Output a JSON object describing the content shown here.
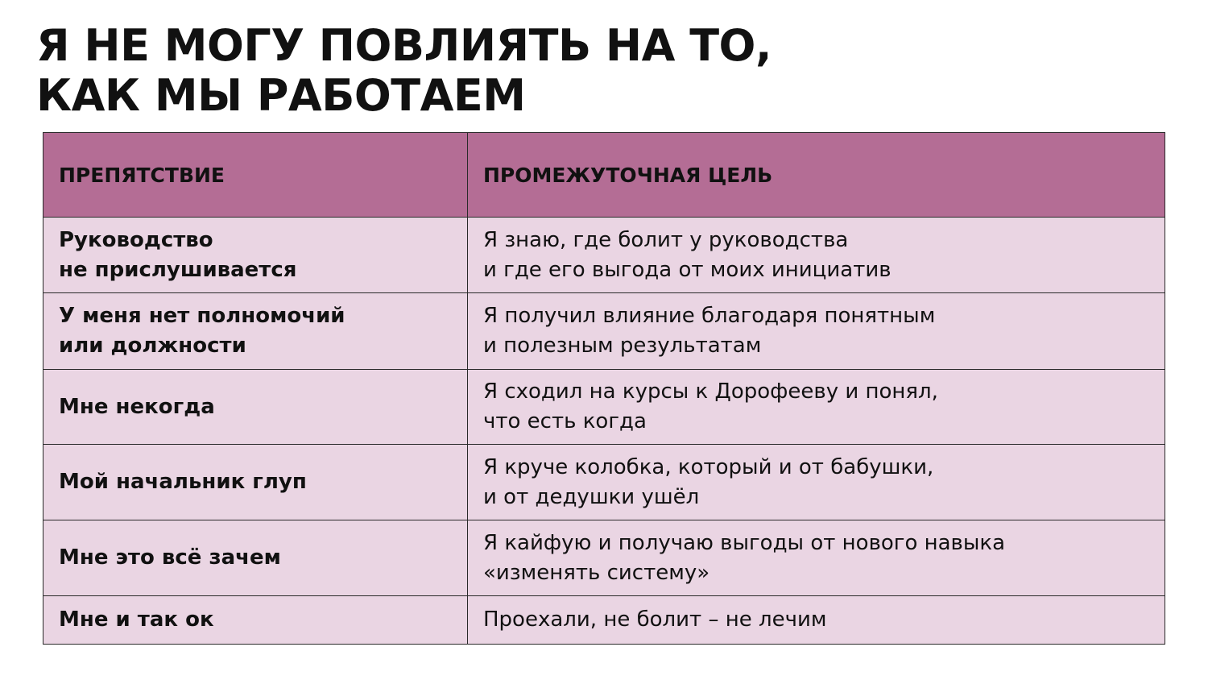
{
  "header": {
    "title": [
      "Я НЕ МОГУ ПОВЛИЯТЬ НА ТО,",
      "КАК МЫ РАБОТАЕМ"
    ]
  },
  "table": {
    "columns": [
      "ПРЕПЯТСТВИЕ",
      "ПРОМЕЖУТОЧНАЯ ЦЕЛЬ"
    ],
    "rows": [
      [
        [
          "Руководство",
          "не прислушивается"
        ],
        [
          "Я знаю, где болит у руководства",
          "и где его выгода от моих инициатив"
        ]
      ],
      [
        [
          "У меня нет полномочий",
          "или должности"
        ],
        [
          "Я получил влияние благодаря понятным",
          "и полезным результатам"
        ]
      ],
      [
        [
          "Мне некогда"
        ],
        [
          "Я сходил на курсы к Дорофееву и понял,",
          "что есть когда"
        ]
      ],
      [
        [
          "Мой начальник глуп"
        ],
        [
          "Я круче колобка, который и от бабушки,",
          "и от дедушки ушёл"
        ]
      ],
      [
        [
          "Мне это всё зачем"
        ],
        [
          "Я кайфую и получаю выгоды от нового навыка",
          "«изменять систему»"
        ]
      ],
      [
        [
          "Мне и так ок"
        ],
        [
          "Проехали, не болит – не лечим"
        ]
      ]
    ]
  }
}
